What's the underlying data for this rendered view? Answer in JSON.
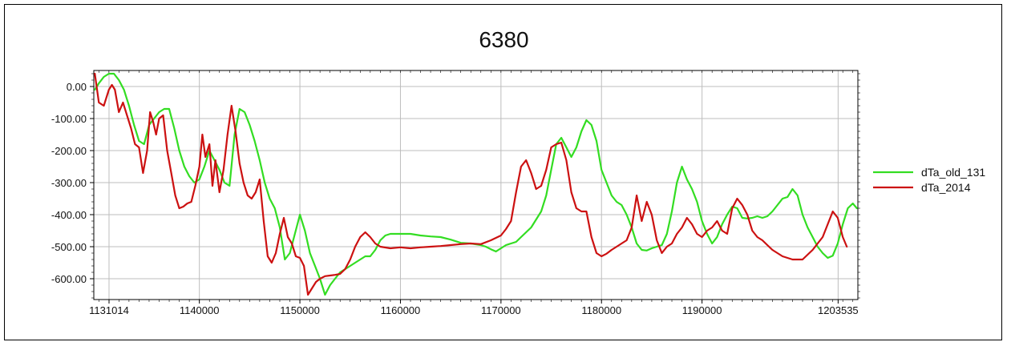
{
  "chart_data": {
    "type": "line",
    "title": "6380",
    "xlabel": "",
    "ylabel": "",
    "xlim": [
      1129500,
      1205500
    ],
    "ylim": [
      -665,
      50
    ],
    "grid": true,
    "legend_position": "right",
    "x_ticks": [
      {
        "value": 1131014,
        "label": "1131014"
      },
      {
        "value": 1140000,
        "label": "1140000"
      },
      {
        "value": 1150000,
        "label": "1150000"
      },
      {
        "value": 1160000,
        "label": "1160000"
      },
      {
        "value": 1170000,
        "label": "1170000"
      },
      {
        "value": 1180000,
        "label": "1180000"
      },
      {
        "value": 1190000,
        "label": "1190000"
      },
      {
        "value": 1203535,
        "label": "1203535"
      }
    ],
    "y_ticks": [
      {
        "value": 0,
        "label": "0.00"
      },
      {
        "value": -100,
        "label": "-100.00"
      },
      {
        "value": -200,
        "label": "-200.00"
      },
      {
        "value": -300,
        "label": "-300.00"
      },
      {
        "value": -400,
        "label": "-400.00"
      },
      {
        "value": -500,
        "label": "-500.00"
      },
      {
        "value": -600,
        "label": "-600.00"
      }
    ],
    "series": [
      {
        "name": "dTa_old_131",
        "color": "#33dd22",
        "points": [
          [
            1129600,
            -10
          ],
          [
            1130000,
            10
          ],
          [
            1130500,
            30
          ],
          [
            1131000,
            40
          ],
          [
            1131500,
            40
          ],
          [
            1132000,
            20
          ],
          [
            1132500,
            -10
          ],
          [
            1133000,
            -60
          ],
          [
            1133500,
            -120
          ],
          [
            1134000,
            -170
          ],
          [
            1134500,
            -180
          ],
          [
            1135000,
            -120
          ],
          [
            1135500,
            -100
          ],
          [
            1136000,
            -80
          ],
          [
            1136500,
            -70
          ],
          [
            1137000,
            -70
          ],
          [
            1137500,
            -130
          ],
          [
            1138000,
            -200
          ],
          [
            1138500,
            -250
          ],
          [
            1139000,
            -280
          ],
          [
            1139500,
            -300
          ],
          [
            1140000,
            -290
          ],
          [
            1140500,
            -250
          ],
          [
            1141000,
            -200
          ],
          [
            1141500,
            -230
          ],
          [
            1142000,
            -260
          ],
          [
            1142500,
            -300
          ],
          [
            1143000,
            -310
          ],
          [
            1143500,
            -150
          ],
          [
            1144000,
            -70
          ],
          [
            1144500,
            -80
          ],
          [
            1145000,
            -120
          ],
          [
            1145500,
            -170
          ],
          [
            1146000,
            -230
          ],
          [
            1146500,
            -300
          ],
          [
            1147000,
            -350
          ],
          [
            1147500,
            -380
          ],
          [
            1148000,
            -440
          ],
          [
            1148500,
            -540
          ],
          [
            1149000,
            -520
          ],
          [
            1149500,
            -460
          ],
          [
            1150000,
            -400
          ],
          [
            1150500,
            -450
          ],
          [
            1151000,
            -520
          ],
          [
            1151500,
            -560
          ],
          [
            1152000,
            -600
          ],
          [
            1152500,
            -650
          ],
          [
            1153000,
            -620
          ],
          [
            1153500,
            -600
          ],
          [
            1154000,
            -580
          ],
          [
            1154500,
            -570
          ],
          [
            1155000,
            -560
          ],
          [
            1155500,
            -550
          ],
          [
            1156000,
            -540
          ],
          [
            1156500,
            -530
          ],
          [
            1157000,
            -530
          ],
          [
            1157500,
            -510
          ],
          [
            1158000,
            -480
          ],
          [
            1158500,
            -465
          ],
          [
            1159000,
            -460
          ],
          [
            1159500,
            -460
          ],
          [
            1160000,
            -460
          ],
          [
            1160500,
            -460
          ],
          [
            1161000,
            -460
          ],
          [
            1162000,
            -465
          ],
          [
            1163000,
            -468
          ],
          [
            1164000,
            -470
          ],
          [
            1165000,
            -478
          ],
          [
            1166000,
            -488
          ],
          [
            1167000,
            -490
          ],
          [
            1168000,
            -495
          ],
          [
            1168500,
            -500
          ],
          [
            1169000,
            -508
          ],
          [
            1169500,
            -515
          ],
          [
            1170000,
            -505
          ],
          [
            1170500,
            -495
          ],
          [
            1171000,
            -490
          ],
          [
            1171500,
            -485
          ],
          [
            1172000,
            -470
          ],
          [
            1173000,
            -440
          ],
          [
            1174000,
            -390
          ],
          [
            1174500,
            -340
          ],
          [
            1175000,
            -260
          ],
          [
            1175500,
            -180
          ],
          [
            1176000,
            -160
          ],
          [
            1176500,
            -190
          ],
          [
            1177000,
            -220
          ],
          [
            1177500,
            -190
          ],
          [
            1178000,
            -140
          ],
          [
            1178500,
            -105
          ],
          [
            1179000,
            -120
          ],
          [
            1179500,
            -170
          ],
          [
            1180000,
            -260
          ],
          [
            1180500,
            -300
          ],
          [
            1181000,
            -340
          ],
          [
            1181500,
            -360
          ],
          [
            1182000,
            -370
          ],
          [
            1182500,
            -400
          ],
          [
            1183000,
            -440
          ],
          [
            1183500,
            -490
          ],
          [
            1184000,
            -510
          ],
          [
            1184500,
            -512
          ],
          [
            1185000,
            -505
          ],
          [
            1185500,
            -500
          ],
          [
            1186000,
            -495
          ],
          [
            1186500,
            -460
          ],
          [
            1187000,
            -390
          ],
          [
            1187500,
            -300
          ],
          [
            1188000,
            -250
          ],
          [
            1188500,
            -290
          ],
          [
            1189000,
            -320
          ],
          [
            1189500,
            -360
          ],
          [
            1190000,
            -420
          ],
          [
            1190500,
            -460
          ],
          [
            1191000,
            -490
          ],
          [
            1191500,
            -470
          ],
          [
            1192000,
            -430
          ],
          [
            1192500,
            -400
          ],
          [
            1193000,
            -375
          ],
          [
            1193500,
            -380
          ],
          [
            1194000,
            -410
          ],
          [
            1194500,
            -412
          ],
          [
            1195000,
            -410
          ],
          [
            1195500,
            -405
          ],
          [
            1196000,
            -410
          ],
          [
            1196500,
            -405
          ],
          [
            1197000,
            -390
          ],
          [
            1197500,
            -370
          ],
          [
            1198000,
            -350
          ],
          [
            1198500,
            -345
          ],
          [
            1199000,
            -320
          ],
          [
            1199500,
            -340
          ],
          [
            1200000,
            -400
          ],
          [
            1200500,
            -440
          ],
          [
            1201000,
            -470
          ],
          [
            1201500,
            -500
          ],
          [
            1202000,
            -520
          ],
          [
            1202500,
            -535
          ],
          [
            1203000,
            -528
          ],
          [
            1203500,
            -490
          ],
          [
            1204000,
            -430
          ],
          [
            1204500,
            -380
          ],
          [
            1205000,
            -365
          ],
          [
            1205400,
            -380
          ]
        ]
      },
      {
        "name": "dTa_2014",
        "color": "#cc1111",
        "points": [
          [
            1129600,
            40
          ],
          [
            1130000,
            -50
          ],
          [
            1130500,
            -60
          ],
          [
            1131000,
            -10
          ],
          [
            1131300,
            5
          ],
          [
            1131600,
            -10
          ],
          [
            1132000,
            -80
          ],
          [
            1132400,
            -50
          ],
          [
            1132800,
            -90
          ],
          [
            1133200,
            -130
          ],
          [
            1133600,
            -180
          ],
          [
            1134000,
            -190
          ],
          [
            1134400,
            -270
          ],
          [
            1134800,
            -200
          ],
          [
            1135100,
            -80
          ],
          [
            1135400,
            -110
          ],
          [
            1135700,
            -150
          ],
          [
            1136000,
            -100
          ],
          [
            1136400,
            -90
          ],
          [
            1136800,
            -200
          ],
          [
            1137200,
            -270
          ],
          [
            1137600,
            -340
          ],
          [
            1138000,
            -380
          ],
          [
            1138400,
            -375
          ],
          [
            1138800,
            -365
          ],
          [
            1139200,
            -360
          ],
          [
            1139600,
            -310
          ],
          [
            1140000,
            -250
          ],
          [
            1140300,
            -150
          ],
          [
            1140600,
            -220
          ],
          [
            1141000,
            -180
          ],
          [
            1141300,
            -310
          ],
          [
            1141600,
            -230
          ],
          [
            1142000,
            -330
          ],
          [
            1142400,
            -260
          ],
          [
            1142800,
            -150
          ],
          [
            1143200,
            -60
          ],
          [
            1143600,
            -140
          ],
          [
            1144000,
            -240
          ],
          [
            1144400,
            -300
          ],
          [
            1144800,
            -340
          ],
          [
            1145200,
            -350
          ],
          [
            1145600,
            -330
          ],
          [
            1146000,
            -290
          ],
          [
            1146400,
            -420
          ],
          [
            1146800,
            -530
          ],
          [
            1147200,
            -550
          ],
          [
            1147600,
            -520
          ],
          [
            1148000,
            -460
          ],
          [
            1148400,
            -410
          ],
          [
            1148800,
            -470
          ],
          [
            1149200,
            -490
          ],
          [
            1149600,
            -530
          ],
          [
            1150000,
            -535
          ],
          [
            1150400,
            -560
          ],
          [
            1150800,
            -650
          ],
          [
            1151200,
            -630
          ],
          [
            1151600,
            -610
          ],
          [
            1152000,
            -600
          ],
          [
            1152500,
            -592
          ],
          [
            1153000,
            -590
          ],
          [
            1153500,
            -588
          ],
          [
            1154000,
            -585
          ],
          [
            1154500,
            -570
          ],
          [
            1155000,
            -540
          ],
          [
            1155500,
            -500
          ],
          [
            1156000,
            -470
          ],
          [
            1156500,
            -455
          ],
          [
            1157000,
            -470
          ],
          [
            1157500,
            -490
          ],
          [
            1158000,
            -500
          ],
          [
            1159000,
            -505
          ],
          [
            1160000,
            -502
          ],
          [
            1161000,
            -505
          ],
          [
            1162000,
            -502
          ],
          [
            1163000,
            -500
          ],
          [
            1164000,
            -498
          ],
          [
            1165000,
            -495
          ],
          [
            1166000,
            -492
          ],
          [
            1167000,
            -490
          ],
          [
            1168000,
            -492
          ],
          [
            1169000,
            -480
          ],
          [
            1170000,
            -465
          ],
          [
            1170500,
            -445
          ],
          [
            1171000,
            -420
          ],
          [
            1171500,
            -330
          ],
          [
            1172000,
            -250
          ],
          [
            1172500,
            -230
          ],
          [
            1173000,
            -270
          ],
          [
            1173500,
            -320
          ],
          [
            1174000,
            -310
          ],
          [
            1174500,
            -260
          ],
          [
            1175000,
            -190
          ],
          [
            1175500,
            -180
          ],
          [
            1176000,
            -175
          ],
          [
            1176500,
            -230
          ],
          [
            1177000,
            -330
          ],
          [
            1177500,
            -380
          ],
          [
            1178000,
            -390
          ],
          [
            1178500,
            -390
          ],
          [
            1179000,
            -470
          ],
          [
            1179500,
            -520
          ],
          [
            1180000,
            -530
          ],
          [
            1180500,
            -522
          ],
          [
            1181000,
            -510
          ],
          [
            1181500,
            -500
          ],
          [
            1182000,
            -490
          ],
          [
            1182500,
            -480
          ],
          [
            1183000,
            -440
          ],
          [
            1183500,
            -340
          ],
          [
            1184000,
            -420
          ],
          [
            1184500,
            -360
          ],
          [
            1185000,
            -400
          ],
          [
            1185500,
            -480
          ],
          [
            1186000,
            -520
          ],
          [
            1186500,
            -500
          ],
          [
            1187000,
            -490
          ],
          [
            1187500,
            -460
          ],
          [
            1188000,
            -440
          ],
          [
            1188500,
            -410
          ],
          [
            1189000,
            -430
          ],
          [
            1189500,
            -460
          ],
          [
            1190000,
            -470
          ],
          [
            1190500,
            -450
          ],
          [
            1191000,
            -440
          ],
          [
            1191500,
            -420
          ],
          [
            1192000,
            -450
          ],
          [
            1192500,
            -460
          ],
          [
            1193000,
            -380
          ],
          [
            1193500,
            -350
          ],
          [
            1194000,
            -370
          ],
          [
            1194500,
            -400
          ],
          [
            1195000,
            -450
          ],
          [
            1195500,
            -470
          ],
          [
            1196000,
            -480
          ],
          [
            1196500,
            -495
          ],
          [
            1197000,
            -510
          ],
          [
            1198000,
            -530
          ],
          [
            1199000,
            -540
          ],
          [
            1200000,
            -540
          ],
          [
            1200500,
            -525
          ],
          [
            1201000,
            -510
          ],
          [
            1201500,
            -490
          ],
          [
            1202000,
            -470
          ],
          [
            1202500,
            -430
          ],
          [
            1203000,
            -390
          ],
          [
            1203500,
            -410
          ],
          [
            1204000,
            -470
          ],
          [
            1204400,
            -500
          ]
        ]
      }
    ]
  }
}
